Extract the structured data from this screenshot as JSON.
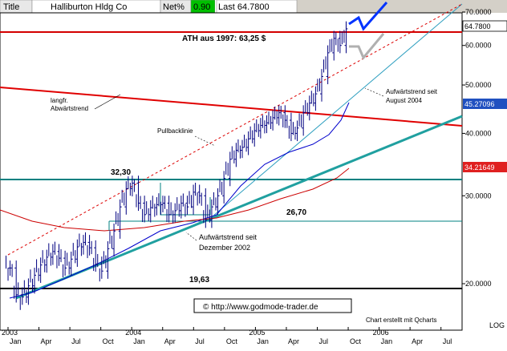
{
  "header": {
    "title_label": "Title",
    "stock_name": "Halliburton Hldg Co",
    "net_label": "Net%",
    "net_value": "0.90",
    "last_label": "Last 64.7800"
  },
  "chart_data": {
    "type": "candlestick",
    "scale": "log",
    "ylim": [
      17.5,
      72
    ],
    "grid": false,
    "y_ticks": [
      {
        "value": 70,
        "label": "70.0000"
      },
      {
        "value": 60,
        "label": "60.0000"
      },
      {
        "value": 50,
        "label": "50.0000"
      },
      {
        "value": 40,
        "label": "40.0000"
      },
      {
        "value": 30,
        "label": "30.0000"
      },
      {
        "value": 20,
        "label": "20.0000"
      }
    ],
    "x_ticks": [
      {
        "month": 0,
        "label": "Jan",
        "year": "2003"
      },
      {
        "month": 3,
        "label": "Apr"
      },
      {
        "month": 6,
        "label": "Jul"
      },
      {
        "month": 9,
        "label": "Oct"
      },
      {
        "month": 12,
        "label": "Jan",
        "year": "2004"
      },
      {
        "month": 15,
        "label": "Apr"
      },
      {
        "month": 18,
        "label": "Jul"
      },
      {
        "month": 21,
        "label": "Oct"
      },
      {
        "month": 24,
        "label": "Jan",
        "year": "2005"
      },
      {
        "month": 27,
        "label": "Apr"
      },
      {
        "month": 30,
        "label": "Jul"
      },
      {
        "month": 33,
        "label": "Oct"
      },
      {
        "month": 36,
        "label": "Jan",
        "year": "2006"
      },
      {
        "month": 39,
        "label": "Apr"
      },
      {
        "month": 42,
        "label": "Jul"
      }
    ],
    "price_close": [
      21.5,
      19.0,
      18.8,
      19.8,
      20.8,
      21.8,
      22.6,
      23.2,
      22.5,
      21.5,
      22.4,
      23.7,
      24.2,
      23.6,
      21.9,
      21.2,
      23.5,
      25.5,
      28.5,
      31.0,
      31.8,
      29.0,
      27.5,
      28.4,
      28.8,
      29.0,
      27.5,
      28.0,
      29.0,
      28.5,
      30.5,
      30.0,
      26.8,
      28.5,
      30.0,
      32.5,
      35.5,
      37.0,
      37.5,
      39.0,
      40.5,
      41.5,
      42.0,
      43.0,
      44.0,
      42.5,
      40.0,
      41.0,
      44.0,
      46.0,
      48.0,
      52.0,
      58.0,
      62.0,
      60.0,
      64.78
    ],
    "price_labels": {
      "high_2004": "32,30",
      "low_2004": "26,70",
      "low_2003": "19,63"
    },
    "last_price_label": "64.7800",
    "mid_label": "45.27096",
    "low_label": "34.21649",
    "annotations": {
      "ath": "ATH aus 1997: 63,25 $",
      "long_down": [
        "langfr.",
        "Abwärtstrend"
      ],
      "pullback": "Pullbacklinie",
      "up_aug04": [
        "Aufwärtstrend seit",
        "August 2004"
      ],
      "up_dec02": [
        "Aufwärtstrend seit",
        "Dezember 2002"
      ]
    },
    "source_url": "© http://www.godmode-trader.de",
    "chart_credit": "Chart erstellt mit Qcharts",
    "log_label": "LOG",
    "colors": {
      "price": "#000080",
      "ath_line": "#d40000",
      "long_down_trend": "#e00000",
      "horizontal_lines": "#008080",
      "teal_trend": "#20a0a0",
      "thin_trend": "#30a0c0",
      "ma_blue": "#0000cc",
      "ma_red": "#cc0000",
      "pullback_dashed": "#dd0000",
      "projection_blue": "#0033ff",
      "projection_gray": "#b0b0b0"
    }
  }
}
